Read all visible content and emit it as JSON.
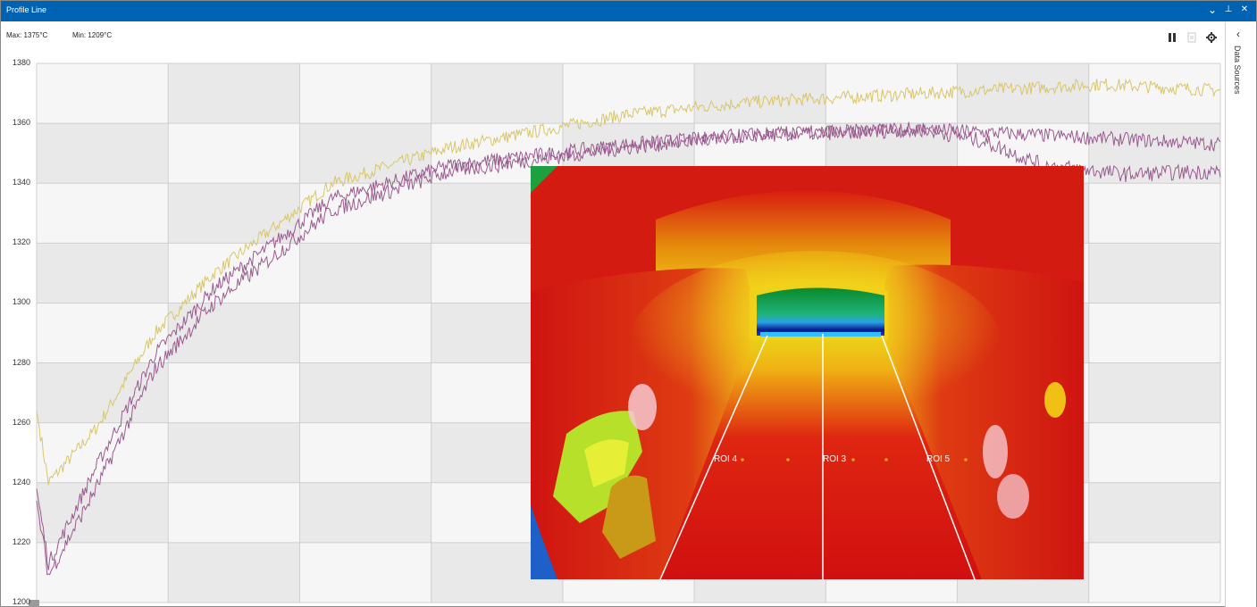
{
  "window": {
    "title": "Profile Line"
  },
  "window_controls": {
    "dropdown": "⌄",
    "pin": "⊥",
    "close": "✕"
  },
  "status": {
    "max": "Max: 1375°C",
    "min": "Min: 1209°C"
  },
  "toolbar": {
    "pause_icon": "pause-icon",
    "export_icon": "export-icon",
    "settings_icon": "gear-icon"
  },
  "side_panel": {
    "label": "Data Sources",
    "chevron": "‹"
  },
  "chart_data": {
    "type": "line",
    "ylim": [
      1200,
      1380
    ],
    "yticks": [
      1380,
      1360,
      1340,
      1320,
      1300,
      1280,
      1260,
      1240,
      1220,
      1200
    ],
    "x_bands": 9,
    "grid": true,
    "series": [
      {
        "color": "#d9c66a",
        "knots": [
          [
            0,
            1264
          ],
          [
            0.01,
            1240
          ],
          [
            0.05,
            1258
          ],
          [
            0.1,
            1290
          ],
          [
            0.15,
            1310
          ],
          [
            0.25,
            1340
          ],
          [
            0.35,
            1352
          ],
          [
            0.5,
            1363
          ],
          [
            0.6,
            1367
          ],
          [
            0.75,
            1370
          ],
          [
            0.9,
            1373
          ],
          [
            1,
            1371
          ]
        ],
        "noise": 2.2
      },
      {
        "color": "#9b5a8f",
        "knots": [
          [
            0,
            1238
          ],
          [
            0.01,
            1213
          ],
          [
            0.05,
            1245
          ],
          [
            0.1,
            1283
          ],
          [
            0.15,
            1305
          ],
          [
            0.25,
            1335
          ],
          [
            0.35,
            1346
          ],
          [
            0.5,
            1353
          ],
          [
            0.6,
            1356
          ],
          [
            0.75,
            1358
          ],
          [
            0.85,
            1356
          ],
          [
            1,
            1353
          ]
        ],
        "noise": 2.4
      },
      {
        "color": "#9b5a8f",
        "knots": [
          [
            0,
            1234
          ],
          [
            0.01,
            1209
          ],
          [
            0.05,
            1238
          ],
          [
            0.1,
            1278
          ],
          [
            0.15,
            1300
          ],
          [
            0.25,
            1331
          ],
          [
            0.35,
            1344
          ],
          [
            0.5,
            1352
          ],
          [
            0.6,
            1356
          ],
          [
            0.75,
            1358
          ],
          [
            0.8,
            1354
          ],
          [
            0.85,
            1346
          ],
          [
            0.92,
            1343
          ],
          [
            1,
            1344
          ]
        ],
        "noise": 2.6
      }
    ]
  },
  "thermal_view": {
    "roi_labels": [
      "ROI 4",
      "ROI 3",
      "ROI 5"
    ]
  }
}
